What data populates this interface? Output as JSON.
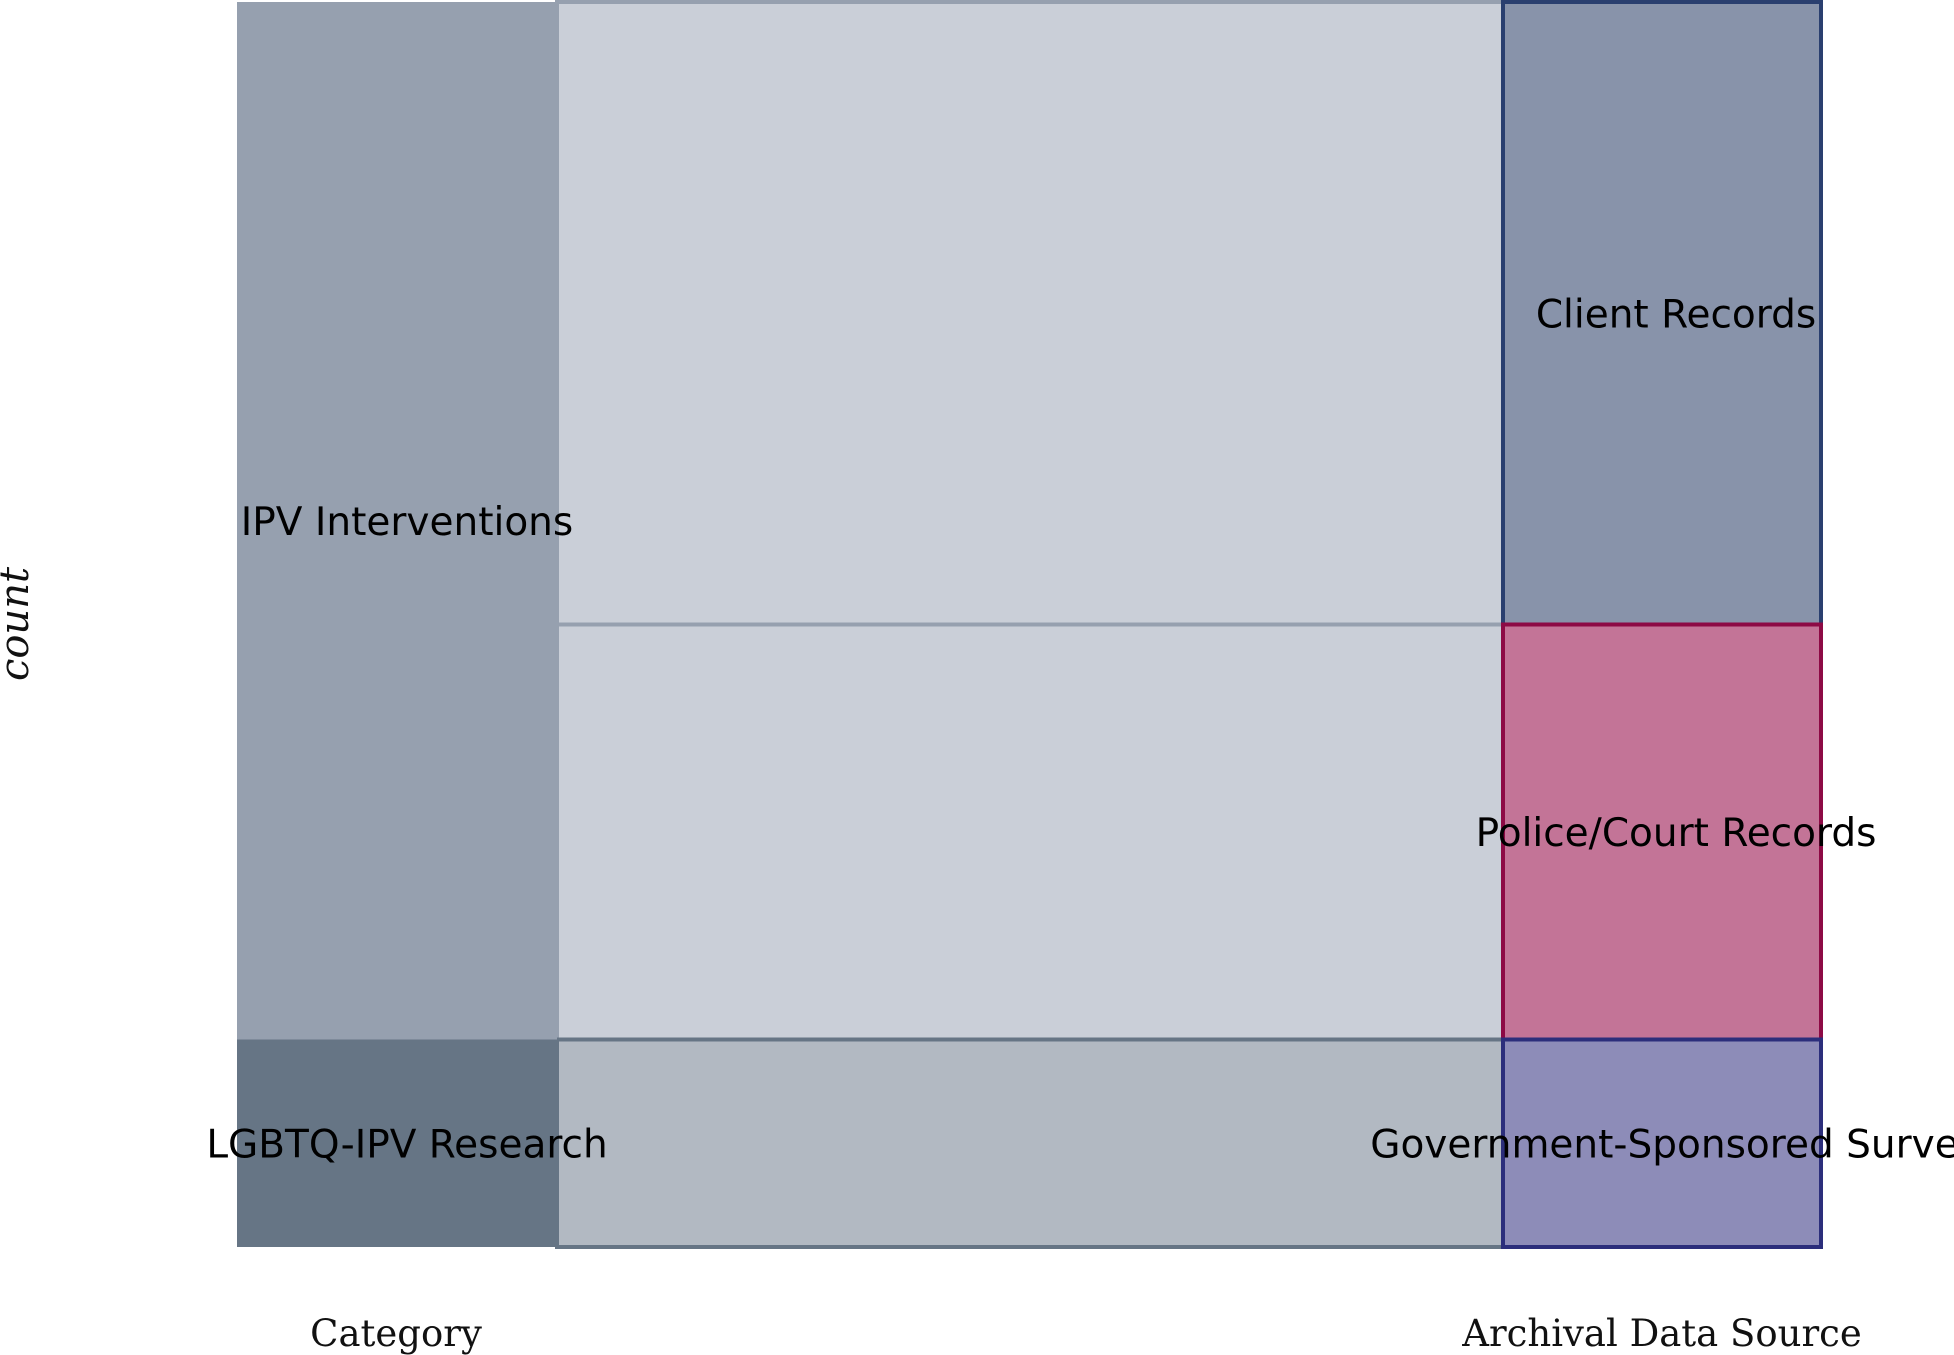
{
  "chart_data": {
    "type": "parallel-categories",
    "ylabel": "count",
    "dimensions": [
      {
        "label": "Category",
        "categories": [
          "IPV Interventions",
          "LGBTQ-IPV Research"
        ]
      },
      {
        "label": "Archival Data Source",
        "categories": [
          "Client Records",
          "Police/Court Records",
          "Government-Sponsored Survey"
        ]
      }
    ],
    "flows": [
      {
        "from": "IPV Interventions",
        "to": "Client Records",
        "count": 3
      },
      {
        "from": "IPV Interventions",
        "to": "Police/Court Records",
        "count": 2
      },
      {
        "from": "LGBTQ-IPV Research",
        "to": "Government-Sponsored Survey",
        "count": 1
      }
    ],
    "colors": {
      "IPV Interventions": "#96a0af",
      "LGBTQ-IPV Research": "#667585",
      "Client Records": "#8893aa",
      "Client Records border": "#2a3f6f",
      "Police/Court Records": "#c37497",
      "Police/Court Records border": "#8d0a45",
      "Government-Sponsored Survey": "#8d8cb8",
      "Government-Sponsored Survey border": "#2c2e7b",
      "flow IPV Interventions": "#cacfd8",
      "flow LGBTQ-IPV Research": "#b2b9c2"
    }
  }
}
